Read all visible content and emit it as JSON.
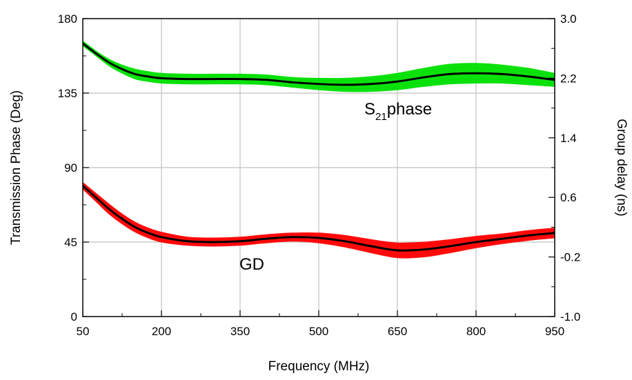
{
  "chart_data": {
    "type": "line",
    "xlabel": "Frequency (MHz)",
    "ylabel": "Transmission Phase (Deg)",
    "y2label": "Group delay (ns)",
    "xlim": [
      50,
      950
    ],
    "ylim": [
      0,
      180
    ],
    "y2lim": [
      -1.0,
      3.0
    ],
    "x_ticks": [
      "50",
      "200",
      "350",
      "500",
      "650",
      "800",
      "950"
    ],
    "y_ticks": [
      "0",
      "45",
      "90",
      "135",
      "180"
    ],
    "y2_ticks": [
      "-1.0",
      "-0.2",
      "0.6",
      "1.4",
      "2.2",
      "3.0"
    ],
    "grid": true,
    "annotations": {
      "s21_main": "S",
      "s21_sub": "21",
      "s21_rest": "phase",
      "gd": "GD"
    },
    "series": [
      {
        "axis": "left",
        "color": "#000000",
        "band_color": "#00e000",
        "x": [
          50,
          75,
          100,
          125,
          150,
          175,
          200,
          250,
          300,
          350,
          400,
          450,
          500,
          550,
          600,
          650,
          700,
          750,
          800,
          850,
          900,
          950
        ],
        "values": [
          165,
          159,
          153.5,
          149.5,
          146.5,
          145,
          144,
          143.5,
          143.5,
          143.5,
          143,
          141.5,
          140.5,
          140,
          140.5,
          142,
          144.5,
          146.5,
          147,
          146.5,
          145,
          143
        ],
        "band_width": [
          1.5,
          1.5,
          2,
          2.5,
          3,
          3,
          3,
          3,
          3,
          3,
          3,
          3,
          3.5,
          4,
          4.5,
          5,
          5.5,
          6,
          6,
          5.5,
          5,
          4
        ]
      },
      {
        "axis": "left",
        "color": "#000000",
        "band_color": "#ff0000",
        "x": [
          50,
          75,
          100,
          125,
          150,
          175,
          200,
          250,
          300,
          350,
          400,
          450,
          500,
          550,
          600,
          650,
          700,
          750,
          800,
          850,
          900,
          950
        ],
        "values": [
          79,
          72,
          65,
          59,
          54,
          50.5,
          48,
          45.5,
          45,
          45.5,
          47,
          48,
          47.5,
          45.5,
          42.5,
          40,
          40.5,
          42.5,
          45,
          47,
          49,
          50.5
        ],
        "band_width": [
          2,
          2.5,
          3,
          3,
          3,
          3,
          3,
          2.5,
          2.5,
          2.5,
          2.5,
          2.5,
          3,
          3.5,
          4,
          4.5,
          4.5,
          4,
          3.5,
          3,
          3,
          3
        ]
      }
    ]
  }
}
